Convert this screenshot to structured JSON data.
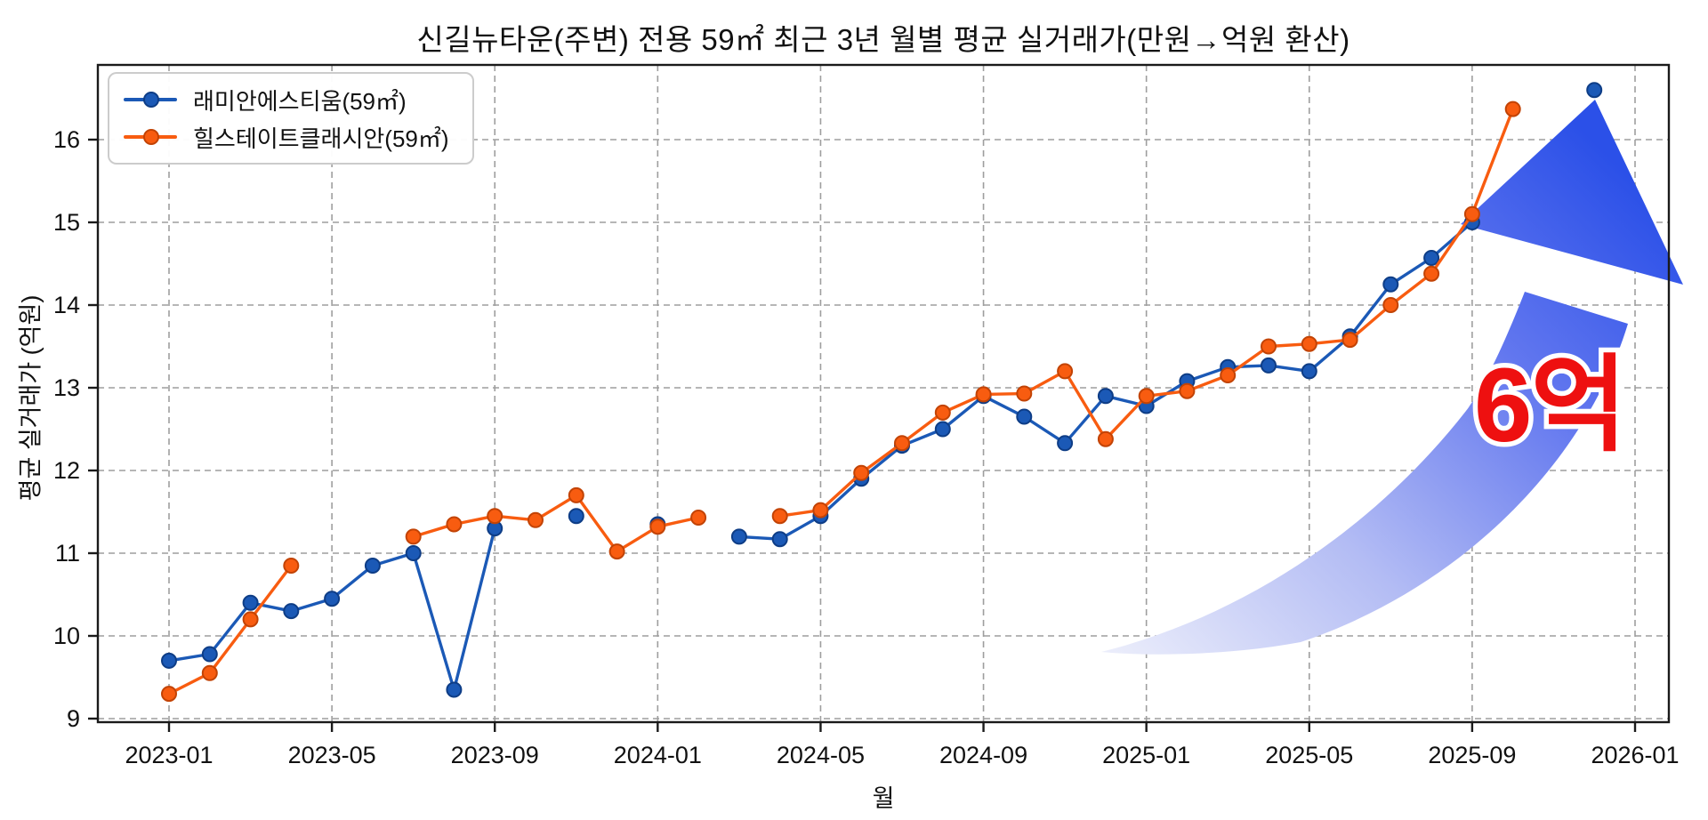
{
  "title": "신길뉴타운(주변) 전용 59㎡ 최근 3년 월별 평균 실거래가(만원→억원 환산)",
  "axes": {
    "x_label": "월",
    "y_label": "평균 실거래가 (억원)",
    "x_tick_labels": [
      "2023-01",
      "2023-05",
      "2023-09",
      "2024-01",
      "2024-05",
      "2024-09",
      "2025-01",
      "2025-05",
      "2025-09",
      "2026-01"
    ],
    "y_tick_labels": [
      "9",
      "10",
      "11",
      "12",
      "13",
      "14",
      "15",
      "16"
    ]
  },
  "legend": {
    "items": [
      {
        "label": "래미안에스티움(59㎡)"
      },
      {
        "label": "힐스테이트클래시안(59㎡)"
      }
    ]
  },
  "annotation": {
    "label": "6억",
    "text_color": "#ee1010",
    "outline_color": "#ffffff",
    "arrow_color_head": "#2b50e8",
    "arrow_color_tail": "#eceefb"
  },
  "chart_data": {
    "type": "line",
    "x": [
      "2023-01",
      "2023-02",
      "2023-03",
      "2023-04",
      "2023-05",
      "2023-06",
      "2023-07",
      "2023-08",
      "2023-09",
      "2023-10",
      "2023-11",
      "2023-12",
      "2024-01",
      "2024-02",
      "2024-03",
      "2024-04",
      "2024-05",
      "2024-06",
      "2024-07",
      "2024-08",
      "2024-09",
      "2024-10",
      "2024-11",
      "2024-12",
      "2025-01",
      "2025-02",
      "2025-03",
      "2025-04",
      "2025-05",
      "2025-06",
      "2025-07",
      "2025-08",
      "2025-09",
      "2025-10",
      "2025-11",
      "2025-12"
    ],
    "series": [
      {
        "name": "래미안에스티움(59㎡)",
        "color": "#1b59b6",
        "marker_edge": "#0e3d86",
        "values": [
          9.7,
          9.78,
          10.4,
          10.3,
          10.45,
          10.85,
          11.0,
          9.35,
          11.3,
          null,
          11.45,
          null,
          11.35,
          null,
          11.2,
          11.17,
          11.45,
          11.9,
          12.3,
          12.5,
          12.9,
          12.65,
          12.33,
          12.9,
          12.78,
          13.08,
          13.25,
          13.27,
          13.2,
          13.62,
          14.25,
          14.57,
          15.0,
          null,
          null,
          16.6
        ]
      },
      {
        "name": "힐스테이트클래시안(59㎡)",
        "color": "#f85c10",
        "marker_edge": "#c24305",
        "values": [
          9.3,
          9.55,
          10.2,
          10.85,
          null,
          null,
          11.2,
          11.35,
          11.45,
          11.4,
          11.7,
          11.02,
          11.32,
          11.43,
          null,
          11.45,
          11.52,
          11.97,
          12.33,
          12.7,
          12.92,
          12.93,
          13.2,
          12.38,
          12.9,
          12.96,
          13.15,
          13.5,
          13.53,
          13.58,
          14.0,
          14.38,
          15.1,
          16.37,
          null,
          null
        ]
      }
    ],
    "ylim": [
      8.96,
      16.9
    ],
    "xlim_months": [
      "2022-11-08",
      "2026-01-25"
    ],
    "grid": "dashed both axes",
    "legend_position": "upper left",
    "annotation_text": "6억"
  }
}
